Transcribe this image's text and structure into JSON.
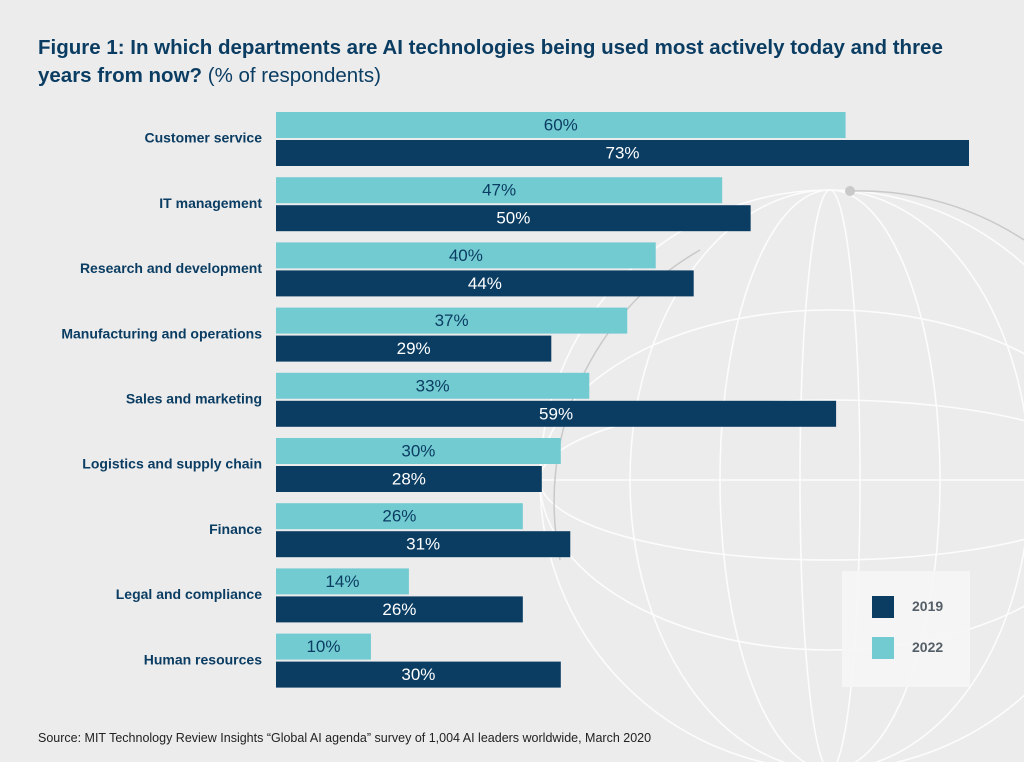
{
  "title": {
    "bold": "Figure 1: In which departments are AI technologies being used most actively today and three years from now?",
    "light": "(% of respondents)"
  },
  "legend": {
    "items": [
      {
        "label": "2019",
        "color": "#0b3d63"
      },
      {
        "label": "2022",
        "color": "#72cbd1"
      }
    ],
    "placement": "bottom-right"
  },
  "source": "Source: MIT Technology Review Insights “Global AI agenda” survey of 1,004 AI leaders worldwide, March 2020",
  "chart_data": {
    "type": "bar",
    "orientation": "horizontal",
    "categories": [
      "Customer service",
      "IT management",
      "Research and development",
      "Manufacturing and operations",
      "Sales and marketing",
      "Logistics and supply chain",
      "Finance",
      "Legal and compliance",
      "Human resources"
    ],
    "series": [
      {
        "name": "2022",
        "color": "#72cbd1",
        "label_color": "#0b3d63",
        "values": [
          60,
          47,
          40,
          37,
          33,
          30,
          26,
          14,
          10
        ]
      },
      {
        "name": "2019",
        "color": "#0b3d63",
        "label_color": "#ffffff",
        "values": [
          73,
          50,
          44,
          29,
          59,
          28,
          31,
          26,
          30
        ]
      }
    ],
    "value_suffix": "%",
    "xlim": [
      0,
      73
    ],
    "grid": false,
    "axes_visible": false
  }
}
